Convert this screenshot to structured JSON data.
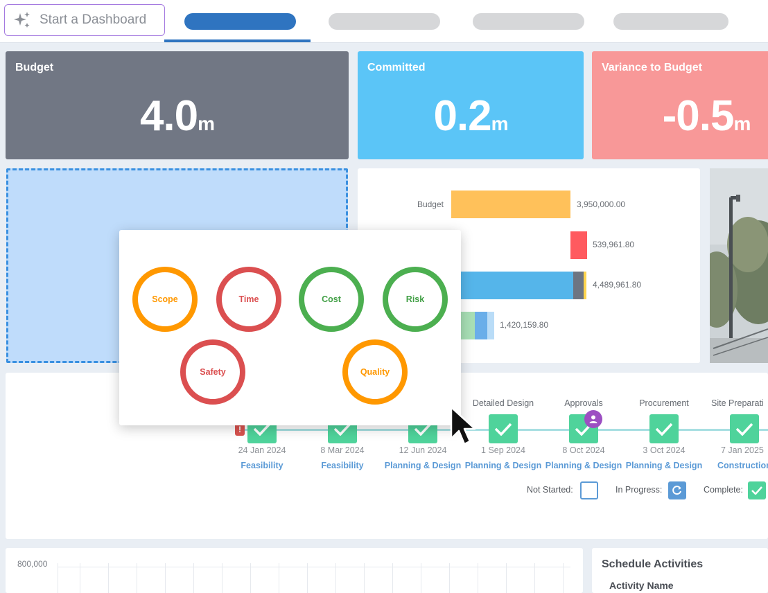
{
  "header": {
    "start_button_label": "Start a Dashboard"
  },
  "kpis": {
    "budget": {
      "title": "Budget",
      "value": "4.0",
      "unit": "m",
      "color": "#717784"
    },
    "committed": {
      "title": "Committed",
      "value": "0.2",
      "unit": "m",
      "color": "#5bc5f7"
    },
    "variance": {
      "title": "Variance to Budget",
      "value": "-0.5",
      "unit": "m",
      "color": "#f89898"
    }
  },
  "budget_chart": {
    "labels": [
      "Budget"
    ],
    "values": [
      "3,950,000.00",
      "539,961.80",
      "4,489,961.80",
      "1,420,159.80"
    ],
    "colors": {
      "budget": "#ffc15a",
      "committed": "#ff5a5f",
      "forecast": "#55b5ea",
      "actual_green": "#a8dfb5",
      "actual_blue": "#6aaee9"
    }
  },
  "status_popup": {
    "items": [
      {
        "label": "Scope",
        "status": "orange"
      },
      {
        "label": "Time",
        "status": "red"
      },
      {
        "label": "Cost",
        "status": "green"
      },
      {
        "label": "Risk",
        "status": "green"
      },
      {
        "label": "Safety",
        "status": "red"
      },
      {
        "label": "Quality",
        "status": "orange"
      }
    ]
  },
  "timeline": {
    "milestones": [
      {
        "title": "",
        "date": "24 Jan 2024",
        "phase": "Feasibility"
      },
      {
        "title": "",
        "date": "8 Mar 2024",
        "phase": "Feasibility"
      },
      {
        "title": "",
        "date": "12 Jun 2024",
        "phase": "Planning & Design"
      },
      {
        "title": "Detailed Design",
        "date": "1 Sep 2024",
        "phase": "Planning & Design"
      },
      {
        "title": "Approvals",
        "date": "8 Oct 2024",
        "phase": "Planning & Design"
      },
      {
        "title": "Procurement",
        "date": "3 Oct 2024",
        "phase": "Planning & Design"
      },
      {
        "title": "Site Preparati",
        "date": "7 Jan 2025",
        "phase": "Construction"
      }
    ],
    "legend": {
      "not_started": "Not Started:",
      "in_progress": "In Progress:",
      "complete": "Complete:"
    }
  },
  "bottom_chart": {
    "y_tick": "800,000"
  },
  "schedule": {
    "title": "Schedule Activities",
    "column": "Activity Name"
  }
}
